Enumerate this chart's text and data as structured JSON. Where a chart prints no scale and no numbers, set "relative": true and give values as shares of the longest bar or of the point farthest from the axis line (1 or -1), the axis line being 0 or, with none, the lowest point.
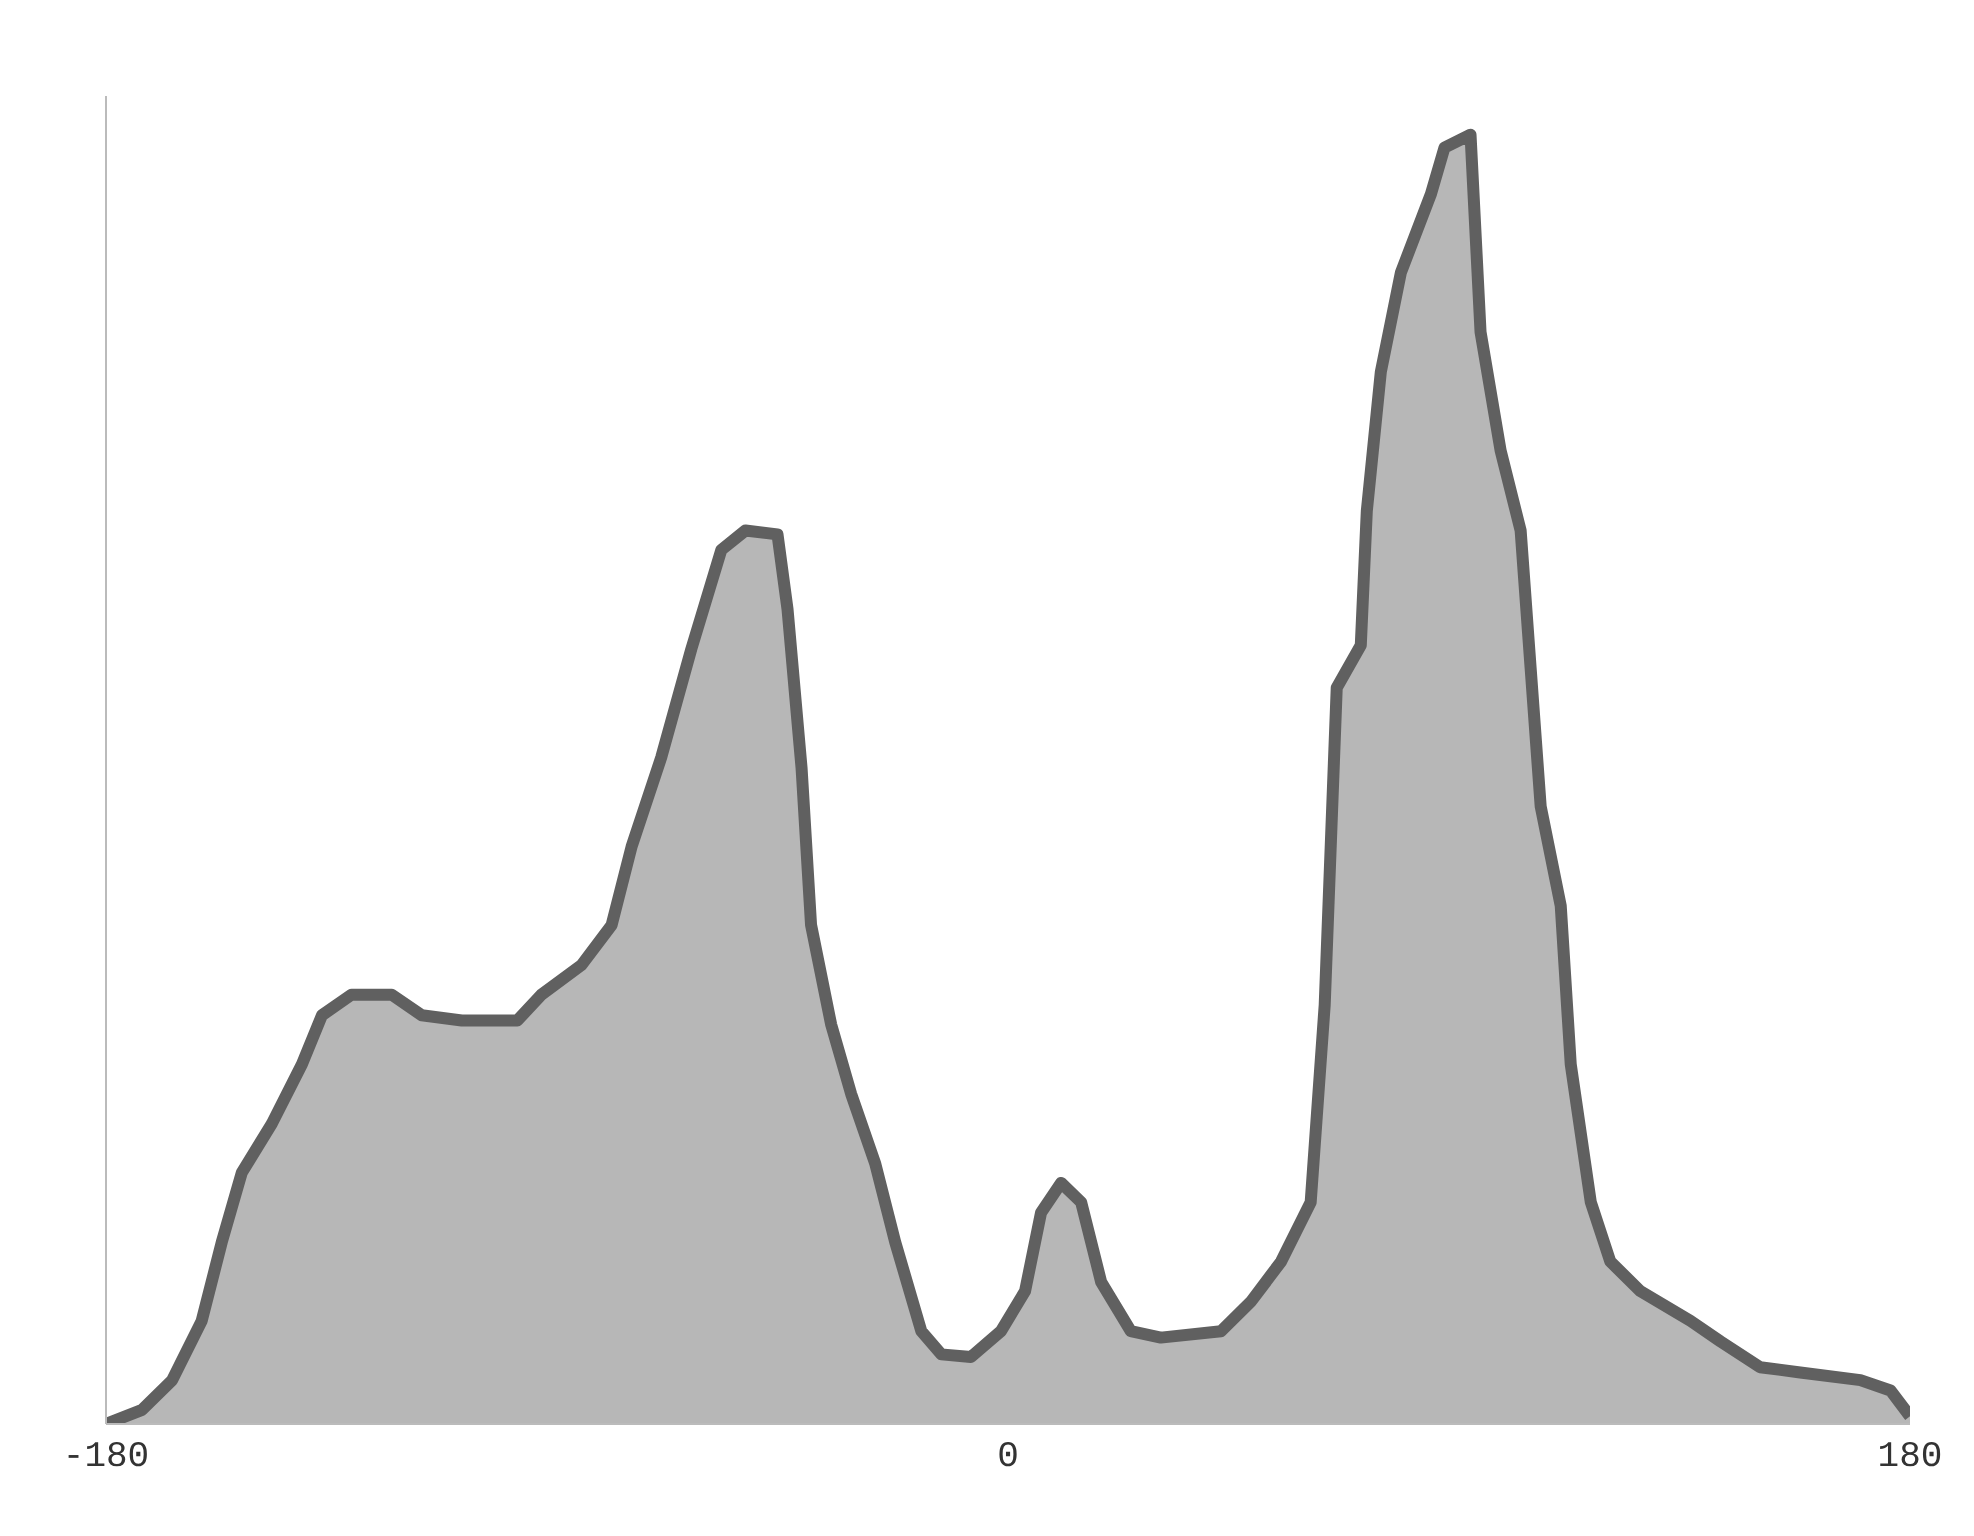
{
  "chart_data": {
    "type": "area",
    "relative": true,
    "xlim": [
      -180,
      180
    ],
    "xticks": [
      -180,
      0,
      180
    ],
    "series": [
      {
        "color": "#606060",
        "x": [
          -180,
          -172.8,
          -166.8,
          -160.9,
          -156.9,
          -152.9,
          -146.9,
          -140.9,
          -136.9,
          -131,
          -123,
          -117,
          -109,
          -97.9,
          -93.1,
          -85.1,
          -79.1,
          -75.1,
          -69.2,
          -63.2,
          -57.2,
          -52.4,
          -46,
          -44,
          -41.2,
          -39.3,
          -35.3,
          -31.3,
          -26.5,
          -22.5,
          -17.3,
          -13.3,
          -7.4,
          -1.4,
          3.4,
          6.6,
          10.6,
          14.6,
          18.6,
          24.5,
          30.5,
          42.5,
          48.5,
          54.5,
          60.4,
          63.2,
          65.6,
          70.4,
          71.6,
          74.4,
          78.4,
          84.4,
          87.1,
          92.3,
          94.3,
          98.3,
          102.3,
          104.3,
          106.3,
          110.3,
          112.3,
          116.3,
          120.2,
          126.2,
          136.2,
          142.2,
          150.1,
          158.1,
          170.1,
          176.1,
          180
        ],
        "values": [
          0,
          0.011,
          0.034,
          0.08,
          0.141,
          0.195,
          0.233,
          0.279,
          0.317,
          0.333,
          0.333,
          0.317,
          0.313,
          0.313,
          0.333,
          0.356,
          0.387,
          0.448,
          0.517,
          0.601,
          0.678,
          0.693,
          0.69,
          0.632,
          0.509,
          0.387,
          0.31,
          0.256,
          0.202,
          0.141,
          0.072,
          0.054,
          0.052,
          0.072,
          0.103,
          0.164,
          0.187,
          0.172,
          0.11,
          0.072,
          0.067,
          0.072,
          0.095,
          0.126,
          0.172,
          0.325,
          0.571,
          0.604,
          0.708,
          0.816,
          0.893,
          0.954,
          0.99,
          1,
          0.847,
          0.755,
          0.693,
          0.586,
          0.479,
          0.402,
          0.279,
          0.172,
          0.126,
          0.103,
          0.08,
          0.064,
          0.044,
          0.04,
          0.034,
          0.026,
          0.006
        ]
      }
    ]
  }
}
